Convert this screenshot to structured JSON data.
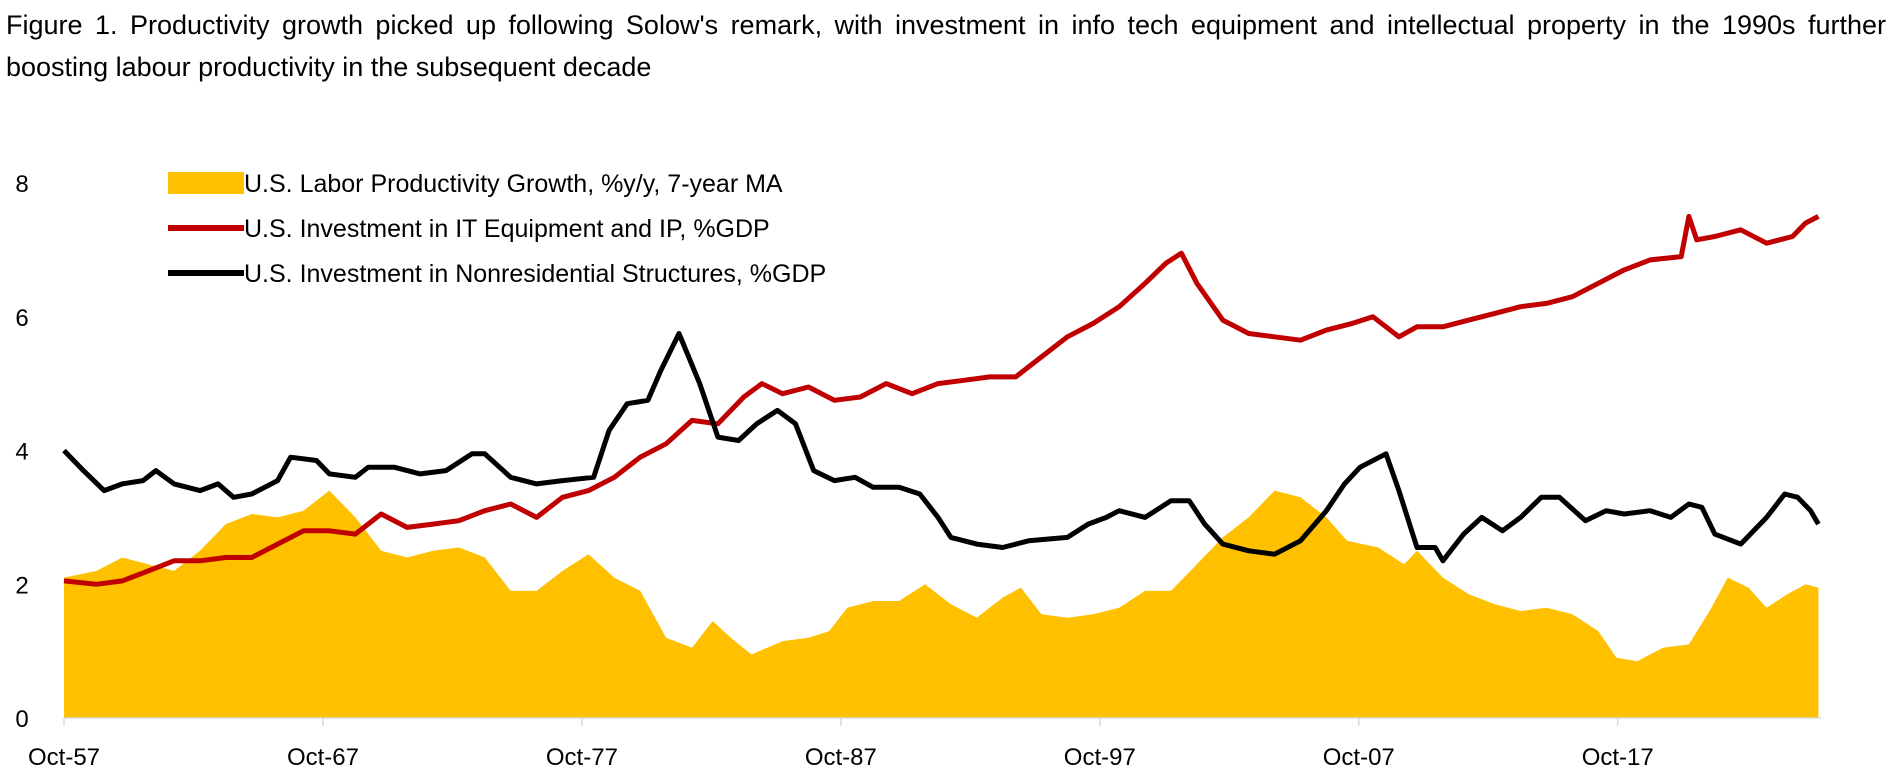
{
  "chart_data": {
    "type": "area+line",
    "title": "Figure 1. Productivity growth picked up following Solow's remark, with investment in info tech equipment and intellectual property in the 1990s further boosting labour productivity in the subsequent decade",
    "xlabel": "",
    "ylabel": "",
    "ylim": [
      0,
      8
    ],
    "xlim": [
      1957.75,
      2025.6
    ],
    "yticks": [
      "0",
      "2",
      "4",
      "6",
      "8"
    ],
    "xticks": [
      {
        "label": "Oct-57",
        "x": 1957.75
      },
      {
        "label": "Oct-67",
        "x": 1967.75
      },
      {
        "label": "Oct-77",
        "x": 1977.75
      },
      {
        "label": "Oct-87",
        "x": 1987.75
      },
      {
        "label": "Oct-97",
        "x": 1997.75
      },
      {
        "label": "Oct-07",
        "x": 2007.75
      },
      {
        "label": "Oct-17",
        "x": 2017.75
      }
    ],
    "grid": false,
    "legend_position": "top-left",
    "series": [
      {
        "name": "U.S. Labor Productivity Growth, %y/y, 7-year MA",
        "kind": "area",
        "color": "#FFC000",
        "points": [
          [
            1957.75,
            2.1
          ],
          [
            1959,
            2.2
          ],
          [
            1960,
            2.4
          ],
          [
            1961,
            2.3
          ],
          [
            1962,
            2.2
          ],
          [
            1963,
            2.5
          ],
          [
            1964,
            2.9
          ],
          [
            1965,
            3.05
          ],
          [
            1966,
            3.0
          ],
          [
            1967,
            3.1
          ],
          [
            1968,
            3.4
          ],
          [
            1969,
            3.0
          ],
          [
            1970,
            2.5
          ],
          [
            1971,
            2.4
          ],
          [
            1972,
            2.5
          ],
          [
            1973,
            2.55
          ],
          [
            1974,
            2.4
          ],
          [
            1975,
            1.9
          ],
          [
            1976,
            1.9
          ],
          [
            1977,
            2.2
          ],
          [
            1978,
            2.45
          ],
          [
            1979,
            2.1
          ],
          [
            1980,
            1.9
          ],
          [
            1981,
            1.2
          ],
          [
            1982,
            1.05
          ],
          [
            1982.8,
            1.45
          ],
          [
            1983.5,
            1.2
          ],
          [
            1984.3,
            0.95
          ],
          [
            1985.5,
            1.15
          ],
          [
            1986.5,
            1.2
          ],
          [
            1987.3,
            1.3
          ],
          [
            1988,
            1.65
          ],
          [
            1989,
            1.75
          ],
          [
            1990,
            1.75
          ],
          [
            1991,
            2.0
          ],
          [
            1992,
            1.7
          ],
          [
            1993,
            1.5
          ],
          [
            1994,
            1.8
          ],
          [
            1994.7,
            1.95
          ],
          [
            1995.5,
            1.55
          ],
          [
            1996.5,
            1.5
          ],
          [
            1997.5,
            1.55
          ],
          [
            1998.5,
            1.65
          ],
          [
            1999.5,
            1.9
          ],
          [
            2000.5,
            1.9
          ],
          [
            2001.5,
            2.3
          ],
          [
            2002.5,
            2.7
          ],
          [
            2003.5,
            3.0
          ],
          [
            2004.5,
            3.4
          ],
          [
            2005.5,
            3.3
          ],
          [
            2006.5,
            3.0
          ],
          [
            2007.3,
            2.65
          ],
          [
            2008.5,
            2.55
          ],
          [
            2009.5,
            2.3
          ],
          [
            2010,
            2.5
          ],
          [
            2011,
            2.1
          ],
          [
            2012,
            1.85
          ],
          [
            2013,
            1.7
          ],
          [
            2014,
            1.6
          ],
          [
            2015,
            1.65
          ],
          [
            2016,
            1.55
          ],
          [
            2017,
            1.3
          ],
          [
            2017.7,
            0.9
          ],
          [
            2018.5,
            0.85
          ],
          [
            2019.5,
            1.05
          ],
          [
            2020.5,
            1.1
          ],
          [
            2021.3,
            1.6
          ],
          [
            2022,
            2.1
          ],
          [
            2022.8,
            1.95
          ],
          [
            2023.5,
            1.65
          ],
          [
            2024.3,
            1.85
          ],
          [
            2025,
            2.0
          ],
          [
            2025.5,
            1.95
          ]
        ]
      },
      {
        "name": "U.S. Investment in IT Equipment and IP, %GDP",
        "kind": "line",
        "color": "#C00000",
        "points": [
          [
            1957.75,
            2.05
          ],
          [
            1959,
            2.0
          ],
          [
            1960,
            2.05
          ],
          [
            1961,
            2.2
          ],
          [
            1962,
            2.35
          ],
          [
            1963,
            2.35
          ],
          [
            1964,
            2.4
          ],
          [
            1965,
            2.4
          ],
          [
            1966,
            2.6
          ],
          [
            1967,
            2.8
          ],
          [
            1968,
            2.8
          ],
          [
            1969,
            2.75
          ],
          [
            1970,
            3.05
          ],
          [
            1971,
            2.85
          ],
          [
            1972,
            2.9
          ],
          [
            1973,
            2.95
          ],
          [
            1974,
            3.1
          ],
          [
            1975,
            3.2
          ],
          [
            1976,
            3.0
          ],
          [
            1977,
            3.3
          ],
          [
            1978,
            3.4
          ],
          [
            1979,
            3.6
          ],
          [
            1980,
            3.9
          ],
          [
            1981,
            4.1
          ],
          [
            1982,
            4.45
          ],
          [
            1983,
            4.4
          ],
          [
            1984,
            4.8
          ],
          [
            1984.7,
            5.0
          ],
          [
            1985.5,
            4.85
          ],
          [
            1986.5,
            4.95
          ],
          [
            1987.5,
            4.75
          ],
          [
            1988.5,
            4.8
          ],
          [
            1989.5,
            5.0
          ],
          [
            1990.5,
            4.85
          ],
          [
            1991.5,
            5.0
          ],
          [
            1992.5,
            5.05
          ],
          [
            1993.5,
            5.1
          ],
          [
            1994.5,
            5.1
          ],
          [
            1995.5,
            5.4
          ],
          [
            1996.5,
            5.7
          ],
          [
            1997.5,
            5.9
          ],
          [
            1998.5,
            6.15
          ],
          [
            1999.5,
            6.5
          ],
          [
            2000.3,
            6.8
          ],
          [
            2000.9,
            6.95
          ],
          [
            2001.5,
            6.5
          ],
          [
            2002.5,
            5.95
          ],
          [
            2003.5,
            5.75
          ],
          [
            2004.5,
            5.7
          ],
          [
            2005.5,
            5.65
          ],
          [
            2006.5,
            5.8
          ],
          [
            2007.5,
            5.9
          ],
          [
            2008.3,
            6.0
          ],
          [
            2009.3,
            5.7
          ],
          [
            2010,
            5.85
          ],
          [
            2011,
            5.85
          ],
          [
            2012,
            5.95
          ],
          [
            2013,
            6.05
          ],
          [
            2014,
            6.15
          ],
          [
            2015,
            6.2
          ],
          [
            2016,
            6.3
          ],
          [
            2017,
            6.5
          ],
          [
            2018,
            6.7
          ],
          [
            2019,
            6.85
          ],
          [
            2020.2,
            6.9
          ],
          [
            2020.5,
            7.5
          ],
          [
            2020.8,
            7.15
          ],
          [
            2021.5,
            7.2
          ],
          [
            2022.5,
            7.3
          ],
          [
            2023.5,
            7.1
          ],
          [
            2024.5,
            7.2
          ],
          [
            2025,
            7.4
          ],
          [
            2025.5,
            7.5
          ]
        ]
      },
      {
        "name": "U.S. Investment in Nonresidential Structures, %GDP",
        "kind": "line",
        "color": "#000000",
        "points": [
          [
            1957.75,
            4.0
          ],
          [
            1958.5,
            3.7
          ],
          [
            1959.3,
            3.4
          ],
          [
            1960,
            3.5
          ],
          [
            1960.8,
            3.55
          ],
          [
            1961.3,
            3.7
          ],
          [
            1962,
            3.5
          ],
          [
            1963,
            3.4
          ],
          [
            1963.7,
            3.5
          ],
          [
            1964.3,
            3.3
          ],
          [
            1965,
            3.35
          ],
          [
            1966,
            3.55
          ],
          [
            1966.5,
            3.9
          ],
          [
            1967.5,
            3.85
          ],
          [
            1968,
            3.65
          ],
          [
            1969,
            3.6
          ],
          [
            1969.5,
            3.75
          ],
          [
            1970.5,
            3.75
          ],
          [
            1971.5,
            3.65
          ],
          [
            1972.5,
            3.7
          ],
          [
            1973.5,
            3.95
          ],
          [
            1974,
            3.95
          ],
          [
            1975,
            3.6
          ],
          [
            1976,
            3.5
          ],
          [
            1977,
            3.55
          ],
          [
            1978.2,
            3.6
          ],
          [
            1978.8,
            4.3
          ],
          [
            1979.5,
            4.7
          ],
          [
            1980.3,
            4.75
          ],
          [
            1980.8,
            5.2
          ],
          [
            1981.5,
            5.75
          ],
          [
            1982.3,
            5.0
          ],
          [
            1983,
            4.2
          ],
          [
            1983.8,
            4.15
          ],
          [
            1984.5,
            4.4
          ],
          [
            1985.3,
            4.6
          ],
          [
            1986,
            4.4
          ],
          [
            1986.7,
            3.7
          ],
          [
            1987.5,
            3.55
          ],
          [
            1988.3,
            3.6
          ],
          [
            1989,
            3.45
          ],
          [
            1990,
            3.45
          ],
          [
            1990.8,
            3.35
          ],
          [
            1991.5,
            3.0
          ],
          [
            1992,
            2.7
          ],
          [
            1993,
            2.6
          ],
          [
            1994,
            2.55
          ],
          [
            1995,
            2.65
          ],
          [
            1996.5,
            2.7
          ],
          [
            1997.3,
            2.9
          ],
          [
            1998,
            3.0
          ],
          [
            1998.5,
            3.1
          ],
          [
            1999.5,
            3.0
          ],
          [
            2000.5,
            3.25
          ],
          [
            2001.2,
            3.25
          ],
          [
            2001.8,
            2.9
          ],
          [
            2002.5,
            2.6
          ],
          [
            2003.5,
            2.5
          ],
          [
            2004.5,
            2.45
          ],
          [
            2005.5,
            2.65
          ],
          [
            2006.5,
            3.1
          ],
          [
            2007.2,
            3.5
          ],
          [
            2007.8,
            3.75
          ],
          [
            2008.8,
            3.95
          ],
          [
            2009.3,
            3.4
          ],
          [
            2010,
            2.55
          ],
          [
            2010.7,
            2.55
          ],
          [
            2011,
            2.35
          ],
          [
            2011.8,
            2.75
          ],
          [
            2012.5,
            3.0
          ],
          [
            2013.3,
            2.8
          ],
          [
            2014,
            3.0
          ],
          [
            2014.8,
            3.3
          ],
          [
            2015.5,
            3.3
          ],
          [
            2016.5,
            2.95
          ],
          [
            2017.3,
            3.1
          ],
          [
            2018,
            3.05
          ],
          [
            2019,
            3.1
          ],
          [
            2019.8,
            3.0
          ],
          [
            2020.5,
            3.2
          ],
          [
            2021,
            3.15
          ],
          [
            2021.5,
            2.75
          ],
          [
            2022.5,
            2.6
          ],
          [
            2023.5,
            3.0
          ],
          [
            2024.2,
            3.35
          ],
          [
            2024.7,
            3.3
          ],
          [
            2025.2,
            3.1
          ],
          [
            2025.5,
            2.9
          ]
        ]
      }
    ]
  }
}
